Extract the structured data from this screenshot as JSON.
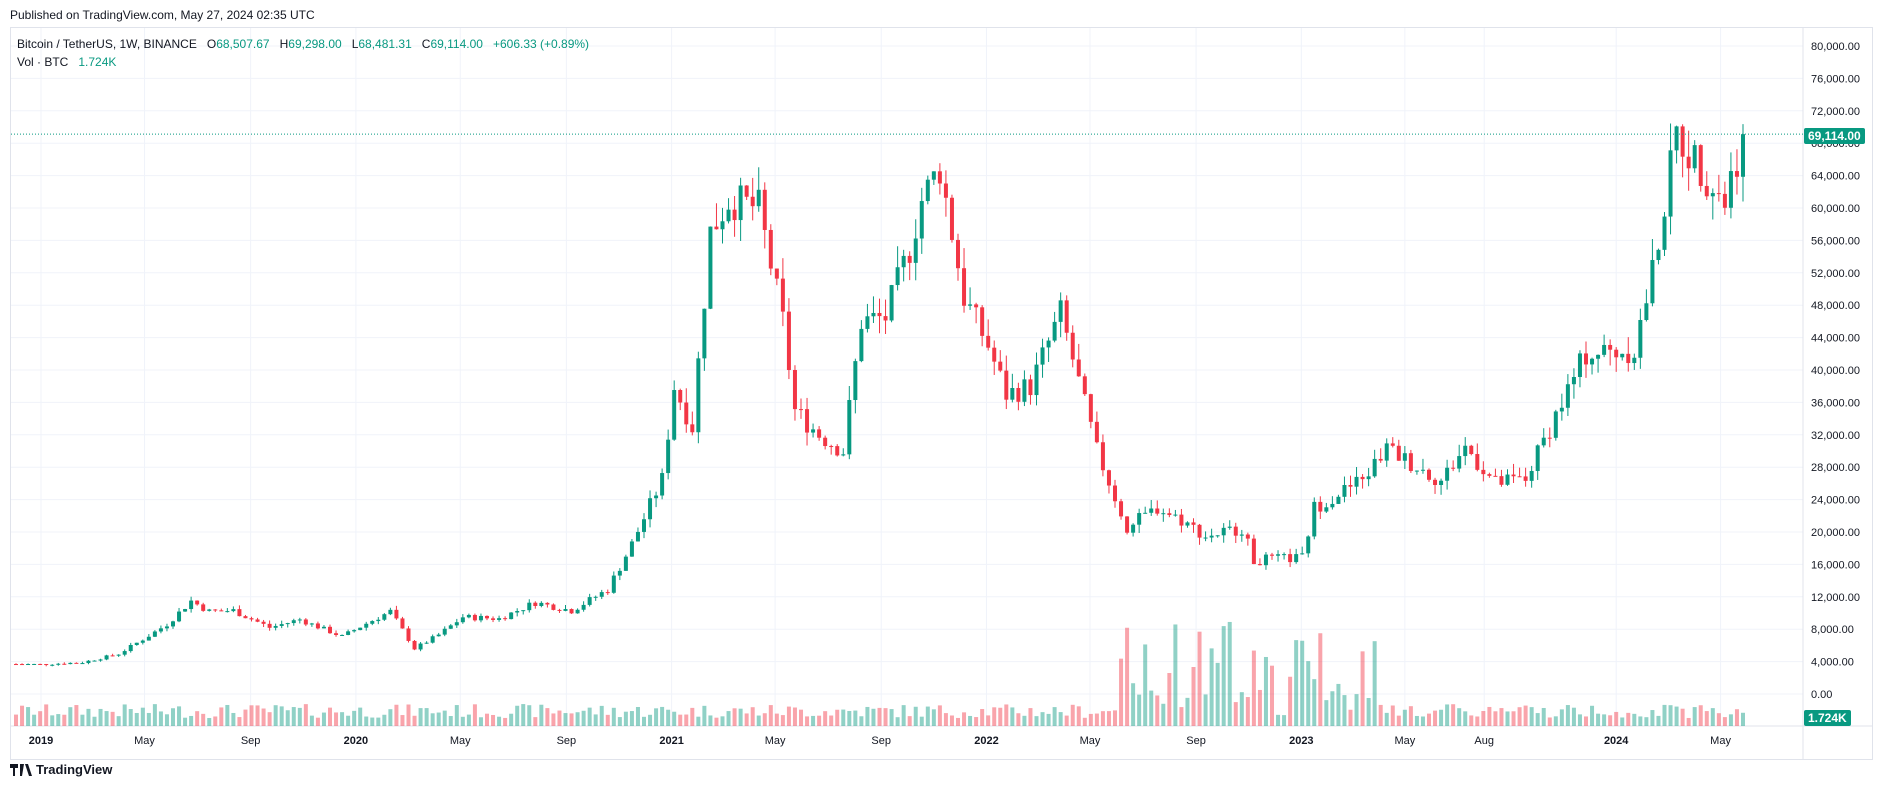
{
  "published": "Published on TradingView.com, May 27, 2024 02:35 UTC",
  "legend": {
    "symbol": "Bitcoin / TetherUS, 1W, BINANCE",
    "open_label": "O",
    "open": "68,507.67",
    "high_label": "H",
    "high": "69,298.00",
    "low_label": "L",
    "low": "68,481.31",
    "close_label": "C",
    "close": "69,114.00",
    "change": "+606.33 (+0.89%)",
    "vol_label": "Vol · BTC",
    "vol_value": "1.724K"
  },
  "price_tag": "69,114.00",
  "vol_tag": "1.724K",
  "footer": {
    "brand": "TradingView"
  },
  "colors": {
    "up": "#089981",
    "down": "#f23645",
    "grid": "#f0f3fa",
    "axis_text": "#131722"
  },
  "chart_data": {
    "type": "candlestick",
    "y_ticks": [
      "0.00",
      "4,000.00",
      "8,000.00",
      "12,000.00",
      "16,000.00",
      "20,000.00",
      "24,000.00",
      "28,000.00",
      "32,000.00",
      "36,000.00",
      "40,000.00",
      "44,000.00",
      "48,000.00",
      "52,000.00",
      "56,000.00",
      "60,000.00",
      "64,000.00",
      "68,000.00",
      "72,000.00",
      "76,000.00",
      "80,000.00"
    ],
    "y_tick_values": [
      0,
      4000,
      8000,
      12000,
      16000,
      20000,
      24000,
      28000,
      32000,
      36000,
      40000,
      44000,
      48000,
      52000,
      56000,
      60000,
      64000,
      68000,
      72000,
      76000,
      80000
    ],
    "x_ticks": [
      "2019",
      "May",
      "Sep",
      "2020",
      "May",
      "Sep",
      "2021",
      "May",
      "Sep",
      "2022",
      "May",
      "Sep",
      "2023",
      "May",
      "Aug",
      "2024",
      "May"
    ],
    "x_tick_dates": [
      "2019-01-01",
      "2019-05-01",
      "2019-09-01",
      "2020-01-01",
      "2020-05-01",
      "2020-09-01",
      "2021-01-01",
      "2021-05-01",
      "2021-09-01",
      "2022-01-01",
      "2022-05-01",
      "2022-09-01",
      "2023-01-01",
      "2023-05-01",
      "2023-08-01",
      "2024-01-01",
      "2024-05-01"
    ],
    "last_close": 69114,
    "price_series": [
      {
        "date": "2018-12-03",
        "close": 3700
      },
      {
        "date": "2018-12-31",
        "close": 3650
      },
      {
        "date": "2019-02-18",
        "close": 3900
      },
      {
        "date": "2019-04-01",
        "close": 4950
      },
      {
        "date": "2019-05-06",
        "close": 7200
      },
      {
        "date": "2019-05-27",
        "close": 8600
      },
      {
        "date": "2019-06-24",
        "close": 11500
      },
      {
        "date": "2019-07-15",
        "close": 10200
      },
      {
        "date": "2019-08-12",
        "close": 10300
      },
      {
        "date": "2019-09-23",
        "close": 8200
      },
      {
        "date": "2019-10-28",
        "close": 9200
      },
      {
        "date": "2019-12-16",
        "close": 7100
      },
      {
        "date": "2020-01-13",
        "close": 8700
      },
      {
        "date": "2020-02-10",
        "close": 10200
      },
      {
        "date": "2020-03-09",
        "close": 5600
      },
      {
        "date": "2020-04-06",
        "close": 7300
      },
      {
        "date": "2020-05-04",
        "close": 9500
      },
      {
        "date": "2020-06-15",
        "close": 9300
      },
      {
        "date": "2020-07-27",
        "close": 11300
      },
      {
        "date": "2020-09-07",
        "close": 10300
      },
      {
        "date": "2020-10-19",
        "close": 12900
      },
      {
        "date": "2020-11-16",
        "close": 18500
      },
      {
        "date": "2020-12-21",
        "close": 26500
      },
      {
        "date": "2021-01-04",
        "close": 38000
      },
      {
        "date": "2021-01-25",
        "close": 33000
      },
      {
        "date": "2021-02-15",
        "close": 57000
      },
      {
        "date": "2021-03-08",
        "close": 61000
      },
      {
        "date": "2021-04-12",
        "close": 60000
      },
      {
        "date": "2021-05-10",
        "close": 46000
      },
      {
        "date": "2021-05-24",
        "close": 35000
      },
      {
        "date": "2021-06-21",
        "close": 32000
      },
      {
        "date": "2021-07-19",
        "close": 30000
      },
      {
        "date": "2021-08-09",
        "close": 46000
      },
      {
        "date": "2021-09-06",
        "close": 46500
      },
      {
        "date": "2021-10-04",
        "close": 55000
      },
      {
        "date": "2021-10-18",
        "close": 61000
      },
      {
        "date": "2021-11-08",
        "close": 65000
      },
      {
        "date": "2021-11-22",
        "close": 57000
      },
      {
        "date": "2021-12-06",
        "close": 49000
      },
      {
        "date": "2022-01-03",
        "close": 43000
      },
      {
        "date": "2022-01-24",
        "close": 37000
      },
      {
        "date": "2022-02-21",
        "close": 38000
      },
      {
        "date": "2022-03-28",
        "close": 47000
      },
      {
        "date": "2022-05-09",
        "close": 30000
      },
      {
        "date": "2022-06-13",
        "close": 20500
      },
      {
        "date": "2022-07-18",
        "close": 23000
      },
      {
        "date": "2022-08-15",
        "close": 21500
      },
      {
        "date": "2022-09-12",
        "close": 19500
      },
      {
        "date": "2022-10-24",
        "close": 20500
      },
      {
        "date": "2022-11-07",
        "close": 16500
      },
      {
        "date": "2023-01-02",
        "close": 16800
      },
      {
        "date": "2023-01-16",
        "close": 23000
      },
      {
        "date": "2023-03-13",
        "close": 26500
      },
      {
        "date": "2023-04-10",
        "close": 30300
      },
      {
        "date": "2023-06-12",
        "close": 26300
      },
      {
        "date": "2023-07-10",
        "close": 30500
      },
      {
        "date": "2023-08-14",
        "close": 26000
      },
      {
        "date": "2023-09-18",
        "close": 26500
      },
      {
        "date": "2023-10-23",
        "close": 34500
      },
      {
        "date": "2023-11-27",
        "close": 42000
      },
      {
        "date": "2024-01-22",
        "close": 42500
      },
      {
        "date": "2024-02-12",
        "close": 52000
      },
      {
        "date": "2024-03-11",
        "close": 69000
      },
      {
        "date": "2024-04-15",
        "close": 64000
      },
      {
        "date": "2024-05-06",
        "close": 61000
      },
      {
        "date": "2024-05-27",
        "close": 69114
      }
    ]
  }
}
